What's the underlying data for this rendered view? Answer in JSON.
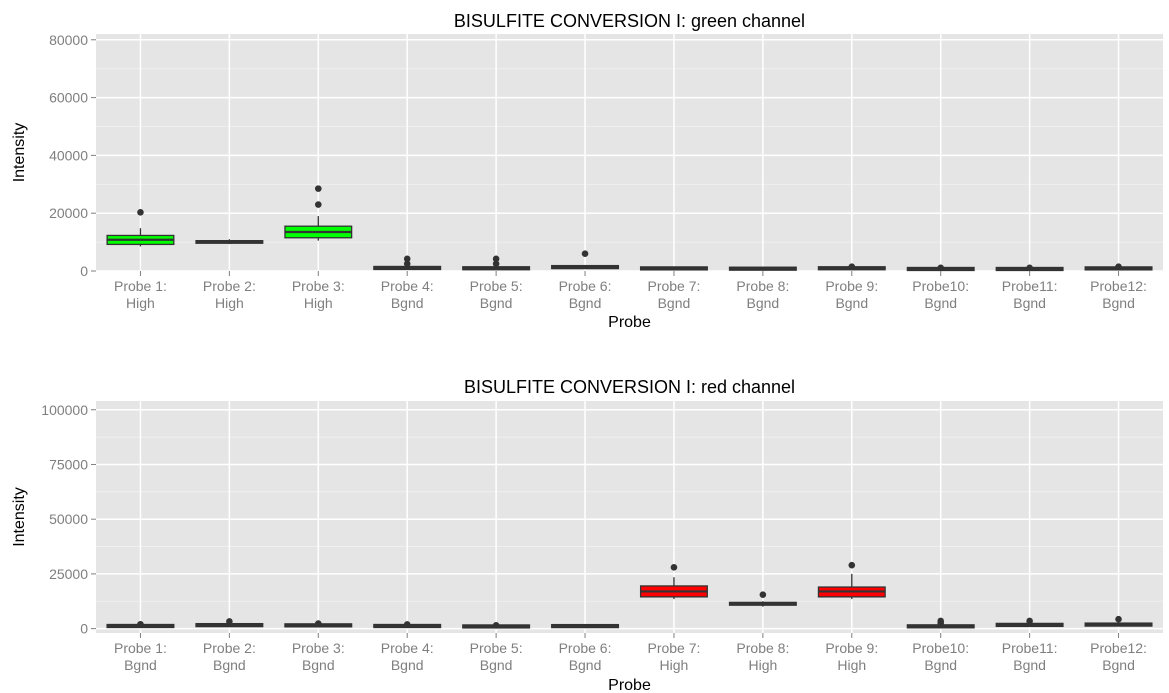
{
  "colors": {
    "panel_bg": "#e5e5e5",
    "grid_major": "#ffffff",
    "grid_minor": "#f2f2f2",
    "box_stroke": "#333333",
    "green_fill": "#00ff00",
    "red_fill": "#ff0000",
    "outlier": "#333333"
  },
  "chart_data": [
    {
      "type": "box",
      "title": "BISULFITE CONVERSION I: green channel",
      "xlabel": "Probe",
      "ylabel": "Intensity",
      "ylim": [
        0,
        82000
      ],
      "yticks": [
        0,
        20000,
        40000,
        60000,
        80000
      ],
      "ytick_labels": [
        "0",
        "20000",
        "40000",
        "60000",
        "80000"
      ],
      "fill_color": "#00ff00",
      "categories": [
        "Probe 1:\nHigh",
        "Probe 2:\nHigh",
        "Probe 3:\nHigh",
        "Probe 4:\nBgnd",
        "Probe 5:\nBgnd",
        "Probe 6:\nBgnd",
        "Probe 7:\nBgnd",
        "Probe 8:\nBgnd",
        "Probe 9:\nBgnd",
        "Probe10:\nBgnd",
        "Probe11:\nBgnd",
        "Probe12:\nBgnd"
      ],
      "boxes": [
        {
          "min": 8500,
          "q1": 9200,
          "median": 10800,
          "q3": 12300,
          "max": 14800,
          "filled": true,
          "outliers": [
            20300
          ]
        },
        {
          "min": 9300,
          "q1": 9600,
          "median": 10000,
          "q3": 10500,
          "max": 11000,
          "filled": true,
          "outliers": []
        },
        {
          "min": 10500,
          "q1": 11500,
          "median": 13500,
          "q3": 15500,
          "max": 19000,
          "filled": true,
          "outliers": [
            23000,
            28500
          ]
        },
        {
          "min": 800,
          "q1": 900,
          "median": 1000,
          "q3": 1200,
          "max": 1500,
          "filled": false,
          "outliers": [
            2500,
            4200
          ]
        },
        {
          "min": 700,
          "q1": 800,
          "median": 900,
          "q3": 1100,
          "max": 1400,
          "filled": false,
          "outliers": [
            2500,
            4200
          ]
        },
        {
          "min": 1100,
          "q1": 1200,
          "median": 1300,
          "q3": 1500,
          "max": 1700,
          "filled": false,
          "outliers": [
            6000
          ]
        },
        {
          "min": 700,
          "q1": 800,
          "median": 900,
          "q3": 1000,
          "max": 1100,
          "filled": false,
          "outliers": []
        },
        {
          "min": 600,
          "q1": 700,
          "median": 800,
          "q3": 900,
          "max": 1000,
          "filled": false,
          "outliers": []
        },
        {
          "min": 700,
          "q1": 800,
          "median": 900,
          "q3": 1100,
          "max": 1300,
          "filled": false,
          "outliers": [
            1500
          ]
        },
        {
          "min": 500,
          "q1": 600,
          "median": 700,
          "q3": 800,
          "max": 900,
          "filled": false,
          "outliers": [
            1100
          ]
        },
        {
          "min": 500,
          "q1": 600,
          "median": 700,
          "q3": 800,
          "max": 900,
          "filled": false,
          "outliers": [
            1100
          ]
        },
        {
          "min": 700,
          "q1": 800,
          "median": 900,
          "q3": 1000,
          "max": 1100,
          "filled": false,
          "outliers": [
            1500
          ]
        }
      ]
    },
    {
      "type": "box",
      "title": "BISULFITE CONVERSION I: red channel",
      "xlabel": "Probe",
      "ylabel": "Intensity",
      "ylim": [
        -2000,
        104000
      ],
      "yticks": [
        0,
        25000,
        50000,
        75000,
        100000
      ],
      "ytick_labels": [
        "0",
        "25000",
        "50000",
        "75000",
        "100000"
      ],
      "fill_color": "#ff0000",
      "categories": [
        "Probe 1:\nBgnd",
        "Probe 2:\nBgnd",
        "Probe 3:\nBgnd",
        "Probe 4:\nBgnd",
        "Probe 5:\nBgnd",
        "Probe 6:\nBgnd",
        "Probe 7:\nHigh",
        "Probe 8:\nHigh",
        "Probe 9:\nHigh",
        "Probe10:\nBgnd",
        "Probe11:\nBgnd",
        "Probe12:\nBgnd"
      ],
      "boxes": [
        {
          "min": 900,
          "q1": 1000,
          "median": 1200,
          "q3": 1400,
          "max": 1600,
          "filled": false,
          "outliers": [
            2000
          ]
        },
        {
          "min": 1300,
          "q1": 1400,
          "median": 1600,
          "q3": 1800,
          "max": 2000,
          "filled": false,
          "outliers": [
            3300
          ]
        },
        {
          "min": 1200,
          "q1": 1300,
          "median": 1500,
          "q3": 1700,
          "max": 1900,
          "filled": false,
          "outliers": [
            2300
          ]
        },
        {
          "min": 900,
          "q1": 1000,
          "median": 1200,
          "q3": 1400,
          "max": 1600,
          "filled": false,
          "outliers": [
            1900
          ]
        },
        {
          "min": 700,
          "q1": 800,
          "median": 1000,
          "q3": 1200,
          "max": 1300,
          "filled": false,
          "outliers": [
            1500
          ]
        },
        {
          "min": 900,
          "q1": 1000,
          "median": 1200,
          "q3": 1300,
          "max": 1400,
          "filled": false,
          "outliers": []
        },
        {
          "min": 13500,
          "q1": 14500,
          "median": 17000,
          "q3": 19500,
          "max": 23500,
          "filled": true,
          "outliers": [
            28000
          ]
        },
        {
          "min": 10000,
          "q1": 10700,
          "median": 11300,
          "q3": 12000,
          "max": 12500,
          "filled": true,
          "outliers": [
            15500
          ]
        },
        {
          "min": 13500,
          "q1": 14500,
          "median": 17000,
          "q3": 19000,
          "max": 25000,
          "filled": true,
          "outliers": [
            29000
          ]
        },
        {
          "min": 600,
          "q1": 800,
          "median": 1000,
          "q3": 1300,
          "max": 1600,
          "filled": false,
          "outliers": [
            2500,
            3500
          ]
        },
        {
          "min": 1400,
          "q1": 1500,
          "median": 1700,
          "q3": 1900,
          "max": 2100,
          "filled": false,
          "outliers": [
            3500
          ]
        },
        {
          "min": 1500,
          "q1": 1600,
          "median": 1900,
          "q3": 2100,
          "max": 2300,
          "filled": false,
          "outliers": [
            4300
          ]
        }
      ]
    }
  ]
}
